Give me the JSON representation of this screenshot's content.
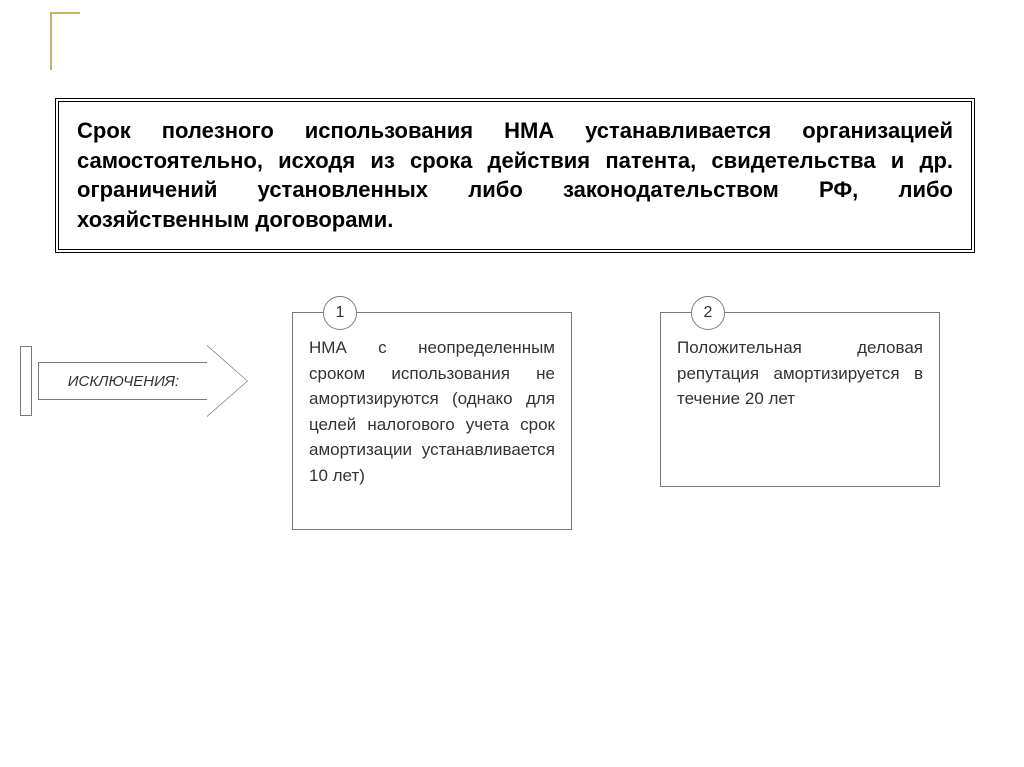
{
  "colors": {
    "decoration": "#c8b268",
    "border": "#000000",
    "box_border": "#7a7a7a",
    "background": "#ffffff",
    "text": "#000000",
    "secondary_text": "#333333"
  },
  "typography": {
    "main_fontsize": 22,
    "main_weight": "bold",
    "label_fontsize": 15,
    "label_style": "italic",
    "info_fontsize": 17,
    "number_fontsize": 16
  },
  "main": {
    "text": "Срок полезного использования НМА устанавливается организацией самостоятельно, исходя из срока действия патента, свидетельства и др. ограничений установленных либо законодательством РФ, либо хозяйственным договорами."
  },
  "arrow": {
    "label": "ИСКЛЮЧЕНИЯ:"
  },
  "boxes": [
    {
      "number": "1",
      "text": "НМА с неопределенным сроком использования не амортизируются (однако для целей налогового учета срок амортизации устанавливается 10 лет)"
    },
    {
      "number": "2",
      "text": "Положительная деловая репутация амортизируется в течение 20 лет"
    }
  ]
}
